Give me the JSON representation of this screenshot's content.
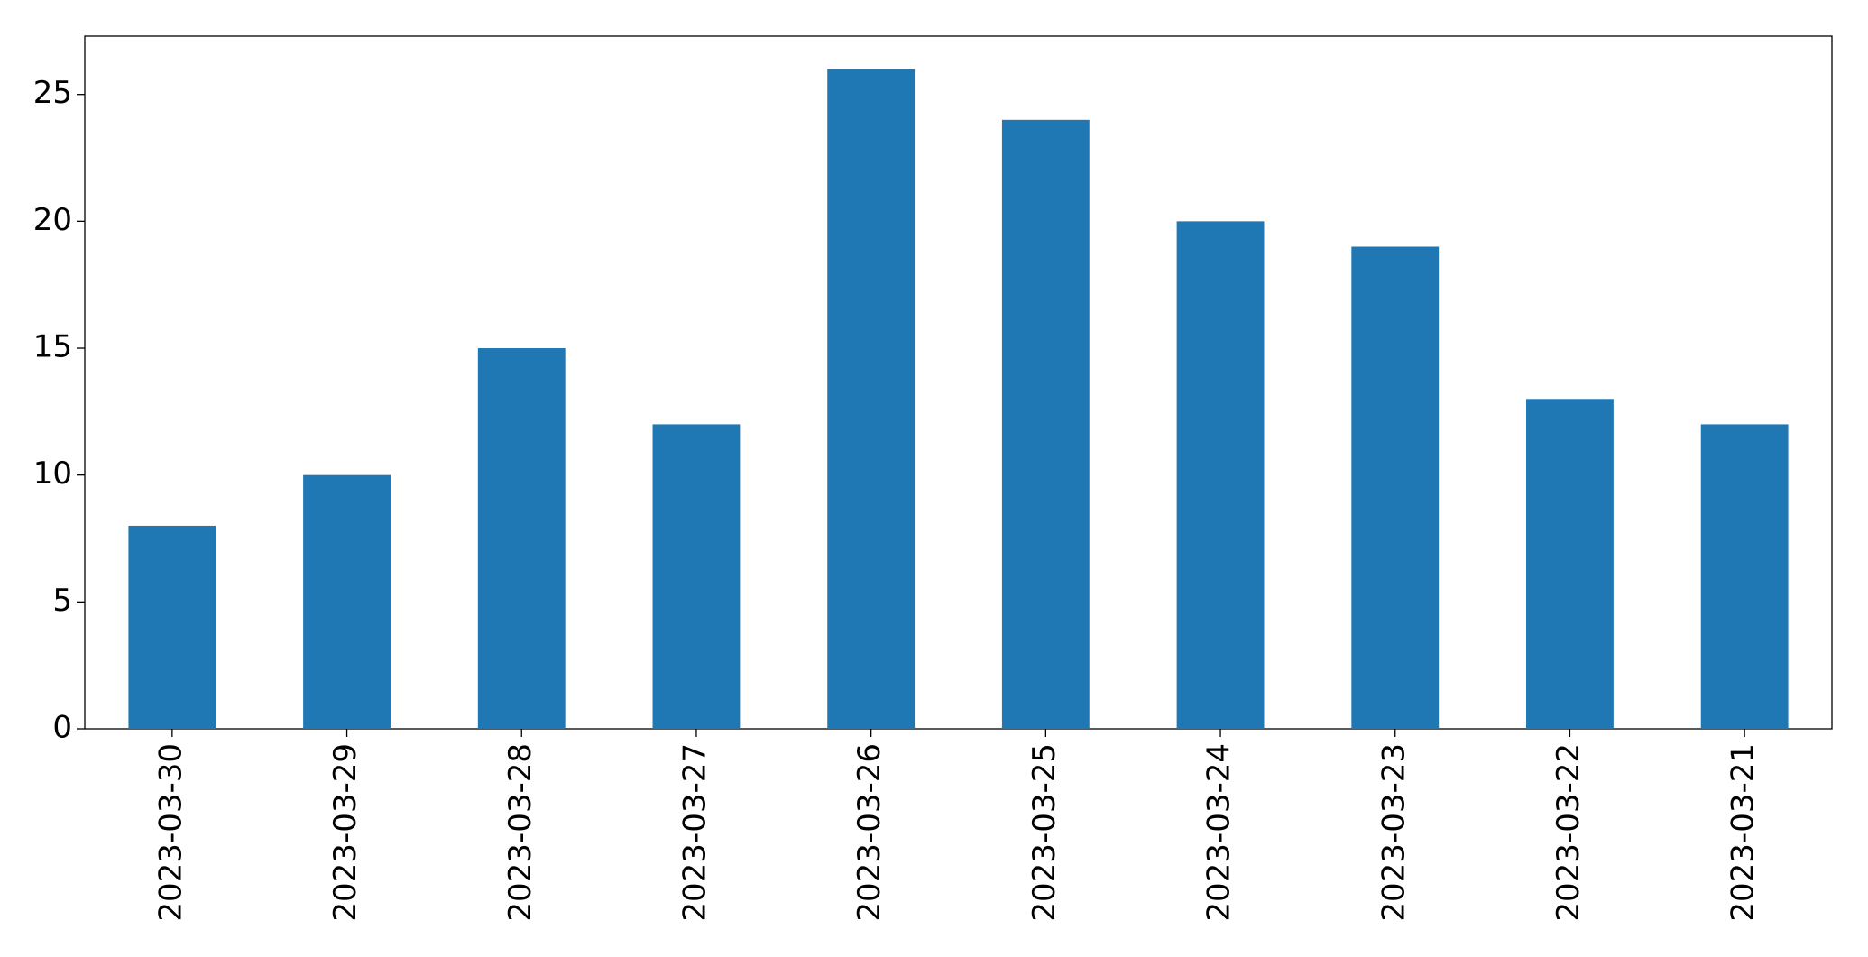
{
  "chart_data": {
    "type": "bar",
    "categories": [
      "2023-03-30",
      "2023-03-29",
      "2023-03-28",
      "2023-03-27",
      "2023-03-26",
      "2023-03-25",
      "2023-03-24",
      "2023-03-23",
      "2023-03-22",
      "2023-03-21"
    ],
    "values": [
      8,
      10,
      15,
      12,
      26,
      24,
      20,
      19,
      13,
      12
    ],
    "color": "#1f77b4",
    "ylim": [
      0,
      27.3
    ],
    "yticks": [
      0,
      5,
      10,
      15,
      20,
      25
    ],
    "grid": false
  }
}
